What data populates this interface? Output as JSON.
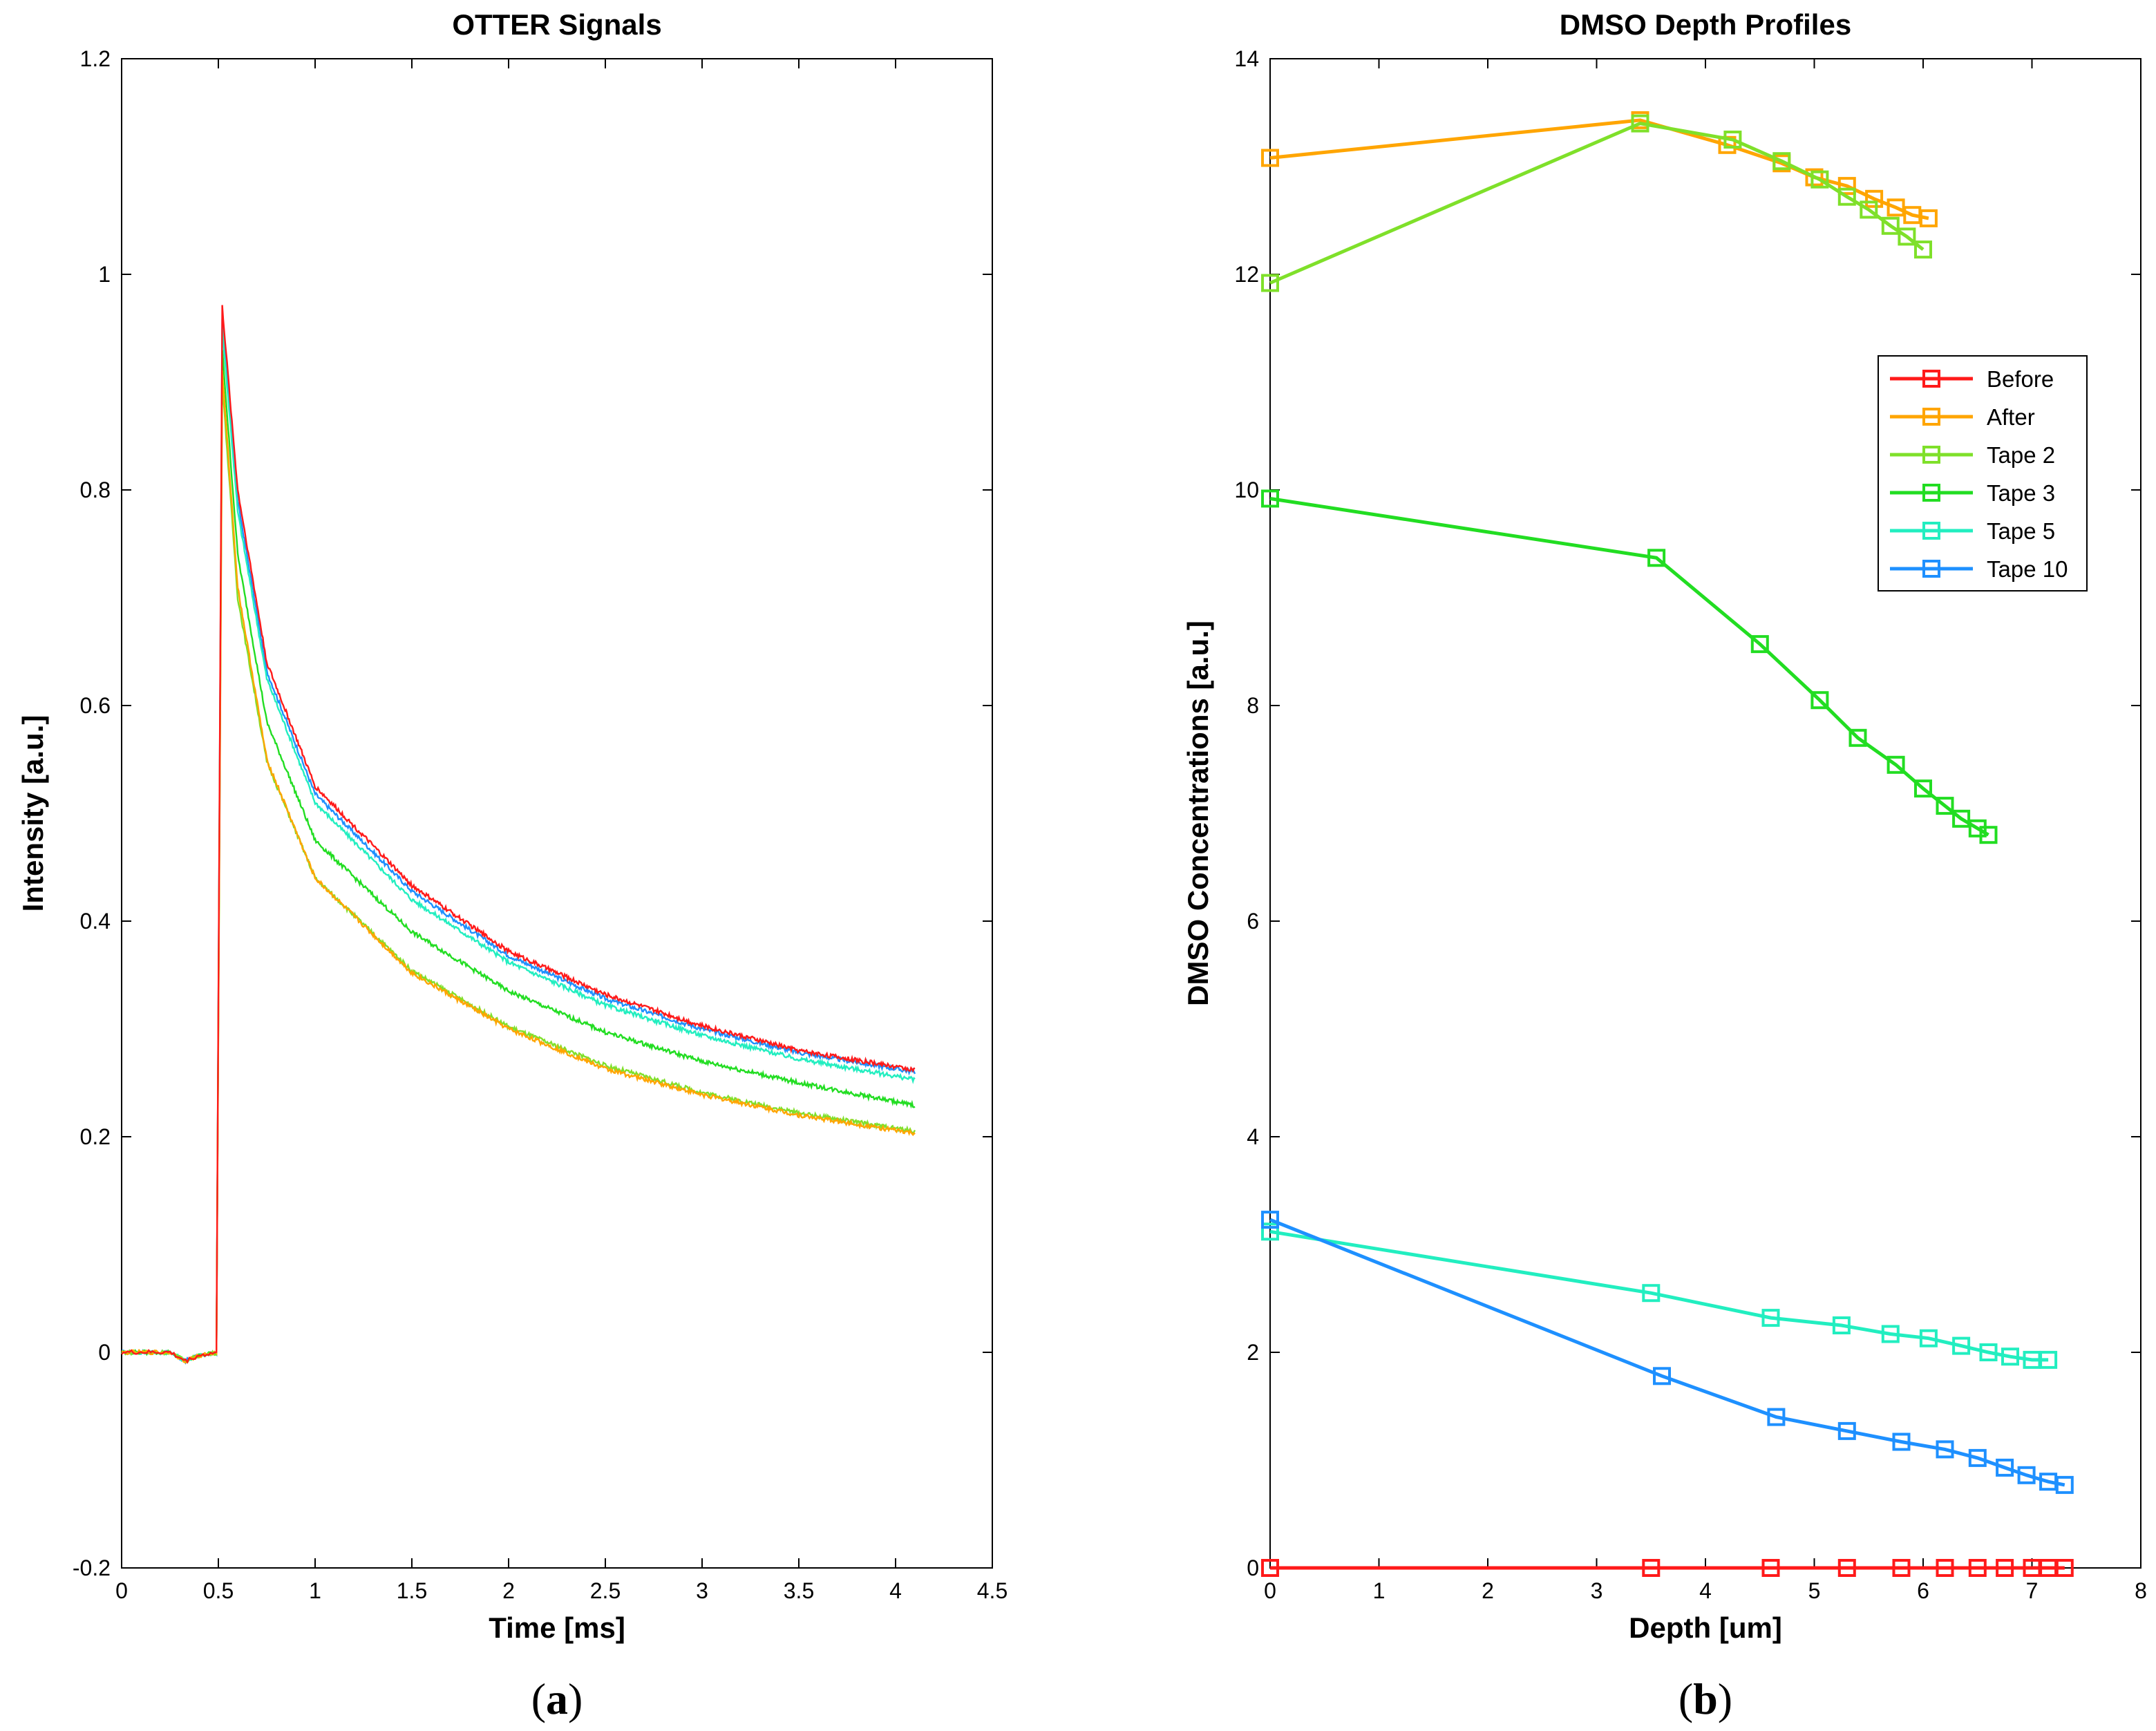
{
  "chart_data": [
    {
      "type": "line",
      "title": "OTTER Signals",
      "xlabel": "Time [ms]",
      "ylabel": "Intensity [a.u.]",
      "xlim": [
        0,
        4.5
      ],
      "ylim": [
        -0.2,
        1.2
      ],
      "xticks": [
        0,
        0.5,
        1,
        1.5,
        2,
        2.5,
        3,
        3.5,
        4,
        4.5
      ],
      "xtick_labels": [
        "0",
        "0.5",
        "1",
        "1.5",
        "2",
        "2.5",
        "3",
        "3.5",
        "4",
        "4.5"
      ],
      "yticks": [
        -0.2,
        0,
        0.2,
        0.4,
        0.6,
        0.8,
        1,
        1.2
      ],
      "ytick_labels": [
        "-0.2",
        "0",
        "0.2",
        "0.4",
        "0.6",
        "0.8",
        "1",
        "1.2"
      ],
      "pulse_start": 0.5,
      "end_time": 4.1,
      "series": [
        {
          "name": "Before",
          "color": "#ff1a1a",
          "values": [
            [
              0.5,
              0.0
            ],
            [
              0.52,
              0.97
            ],
            [
              0.6,
              0.8
            ],
            [
              0.75,
              0.64
            ],
            [
              1.0,
              0.525
            ],
            [
              1.5,
              0.433
            ],
            [
              2.0,
              0.372
            ],
            [
              2.5,
              0.332
            ],
            [
              3.0,
              0.303
            ],
            [
              3.5,
              0.28
            ],
            [
              4.1,
              0.262
            ]
          ]
        },
        {
          "name": "After",
          "color": "#ffa500",
          "values": [
            [
              0.5,
              0.0
            ],
            [
              0.52,
              0.91
            ],
            [
              0.6,
              0.71
            ],
            [
              0.75,
              0.55
            ],
            [
              1.0,
              0.44
            ],
            [
              1.5,
              0.352
            ],
            [
              2.0,
              0.3
            ],
            [
              2.5,
              0.263
            ],
            [
              3.0,
              0.239
            ],
            [
              3.5,
              0.22
            ],
            [
              4.1,
              0.203
            ]
          ]
        },
        {
          "name": "Tape 2",
          "color": "#7fe02a",
          "values": [
            [
              0.5,
              0.0
            ],
            [
              0.52,
              0.9
            ],
            [
              0.6,
              0.7
            ],
            [
              0.75,
              0.548
            ],
            [
              1.0,
              0.44
            ],
            [
              1.5,
              0.354
            ],
            [
              2.0,
              0.302
            ],
            [
              2.5,
              0.266
            ],
            [
              3.0,
              0.241
            ],
            [
              3.5,
              0.222
            ],
            [
              4.1,
              0.205
            ]
          ]
        },
        {
          "name": "Tape 3",
          "color": "#22dd22",
          "values": [
            [
              0.5,
              0.0
            ],
            [
              0.52,
              0.93
            ],
            [
              0.6,
              0.74
            ],
            [
              0.75,
              0.585
            ],
            [
              1.0,
              0.475
            ],
            [
              1.5,
              0.39
            ],
            [
              2.0,
              0.335
            ],
            [
              2.5,
              0.297
            ],
            [
              3.0,
              0.27
            ],
            [
              3.5,
              0.25
            ],
            [
              4.1,
              0.229
            ]
          ]
        },
        {
          "name": "Tape 5",
          "color": "#22eec0",
          "values": [
            [
              0.5,
              0.0
            ],
            [
              0.52,
              0.95
            ],
            [
              0.6,
              0.78
            ],
            [
              0.75,
              0.625
            ],
            [
              1.0,
              0.51
            ],
            [
              1.5,
              0.42
            ],
            [
              2.0,
              0.362
            ],
            [
              2.5,
              0.322
            ],
            [
              3.0,
              0.294
            ],
            [
              3.5,
              0.272
            ],
            [
              4.1,
              0.253
            ]
          ]
        },
        {
          "name": "Tape 10",
          "color": "#1e90ff",
          "values": [
            [
              0.5,
              0.0
            ],
            [
              0.52,
              0.96
            ],
            [
              0.6,
              0.79
            ],
            [
              0.75,
              0.632
            ],
            [
              1.0,
              0.518
            ],
            [
              1.5,
              0.428
            ],
            [
              2.0,
              0.368
            ],
            [
              2.5,
              0.328
            ],
            [
              3.0,
              0.3
            ],
            [
              3.5,
              0.278
            ],
            [
              4.1,
              0.26
            ]
          ]
        }
      ]
    },
    {
      "type": "line",
      "title": "DMSO Depth Profiles",
      "xlabel": "Depth [um]",
      "ylabel": "DMSO Concentrations [a.u.]",
      "xlim": [
        0,
        8
      ],
      "ylim": [
        0,
        14
      ],
      "xticks": [
        0,
        1,
        2,
        3,
        4,
        5,
        6,
        7,
        8
      ],
      "xtick_labels": [
        "0",
        "1",
        "2",
        "3",
        "4",
        "5",
        "6",
        "7",
        "8"
      ],
      "yticks": [
        0,
        2,
        4,
        6,
        8,
        10,
        12,
        14
      ],
      "ytick_labels": [
        "0",
        "2",
        "4",
        "6",
        "8",
        "10",
        "12",
        "14"
      ],
      "legend_position": "upper-right",
      "series": [
        {
          "name": "Before",
          "color": "#ff1a1a",
          "x": [
            0,
            3.5,
            4.6,
            5.3,
            5.8,
            6.2,
            6.5,
            6.75,
            7.0,
            7.15,
            7.3
          ],
          "y": [
            0,
            0,
            0,
            0,
            0,
            0,
            0,
            0,
            0,
            0,
            0
          ]
        },
        {
          "name": "After",
          "color": "#ffa500",
          "x": [
            0,
            3.4,
            4.2,
            4.7,
            5.0,
            5.3,
            5.55,
            5.75,
            5.9,
            6.05
          ],
          "y": [
            13.08,
            13.43,
            13.2,
            13.03,
            12.9,
            12.82,
            12.7,
            12.62,
            12.55,
            12.52
          ]
        },
        {
          "name": "Tape 2",
          "color": "#7fe02a",
          "x": [
            0,
            3.4,
            4.25,
            4.7,
            5.05,
            5.3,
            5.5,
            5.7,
            5.85,
            6.0
          ],
          "y": [
            11.92,
            13.4,
            13.25,
            13.05,
            12.88,
            12.72,
            12.6,
            12.45,
            12.35,
            12.23
          ]
        },
        {
          "name": "Tape 3",
          "color": "#22dd22",
          "x": [
            0,
            3.55,
            4.5,
            5.05,
            5.4,
            5.75,
            6.0,
            6.2,
            6.35,
            6.5,
            6.6
          ],
          "y": [
            9.92,
            9.37,
            8.57,
            8.05,
            7.7,
            7.45,
            7.23,
            7.07,
            6.95,
            6.86,
            6.8
          ]
        },
        {
          "name": "Tape 5",
          "color": "#22eec0",
          "x": [
            0,
            3.5,
            4.6,
            5.25,
            5.7,
            6.05,
            6.35,
            6.6,
            6.8,
            7.0,
            7.15
          ],
          "y": [
            3.12,
            2.55,
            2.32,
            2.25,
            2.17,
            2.13,
            2.06,
            2.0,
            1.96,
            1.93,
            1.93
          ]
        },
        {
          "name": "Tape 10",
          "color": "#1e90ff",
          "x": [
            0,
            3.6,
            4.65,
            5.3,
            5.8,
            6.2,
            6.5,
            6.75,
            6.95,
            7.15,
            7.3
          ],
          "y": [
            3.23,
            1.78,
            1.4,
            1.27,
            1.17,
            1.1,
            1.02,
            0.93,
            0.86,
            0.8,
            0.77
          ]
        }
      ]
    }
  ],
  "captions": {
    "left": {
      "open": "(",
      "letter": "a",
      "close": ")"
    },
    "right": {
      "open": "(",
      "letter": "b",
      "close": ")"
    }
  }
}
